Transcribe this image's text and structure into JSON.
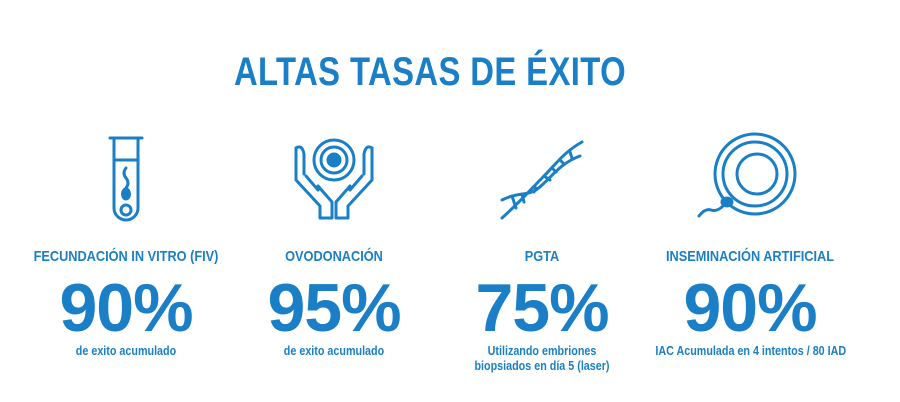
{
  "title": "ALTAS TASAS DE ÉXITO",
  "colors": {
    "primary": "#1a7fc6",
    "background": "#ffffff"
  },
  "stats": [
    {
      "icon": "test-tube-sperm-icon",
      "label": "FECUNDACIÓN IN VITRO (FIV)",
      "value": "90%",
      "note_line1": "de exito acumulado",
      "note_line2": ""
    },
    {
      "icon": "hands-holding-egg-icon",
      "label": "OVODONACIÓN",
      "value": "95%",
      "note_line1": "de exito acumulado",
      "note_line2": ""
    },
    {
      "icon": "dna-helix-icon",
      "label": "PGTA",
      "value": "75%",
      "note_line1": "Utilizando embriones",
      "note_line2": "biopsiados en día 5 (laser)"
    },
    {
      "icon": "egg-sperm-icon",
      "label": "INSEMINACIÓN ARTIFICIAL",
      "value": "90%",
      "note_line1": "IAC Acumulada en 4 intentos / 80 IAD",
      "note_line2": ""
    }
  ]
}
